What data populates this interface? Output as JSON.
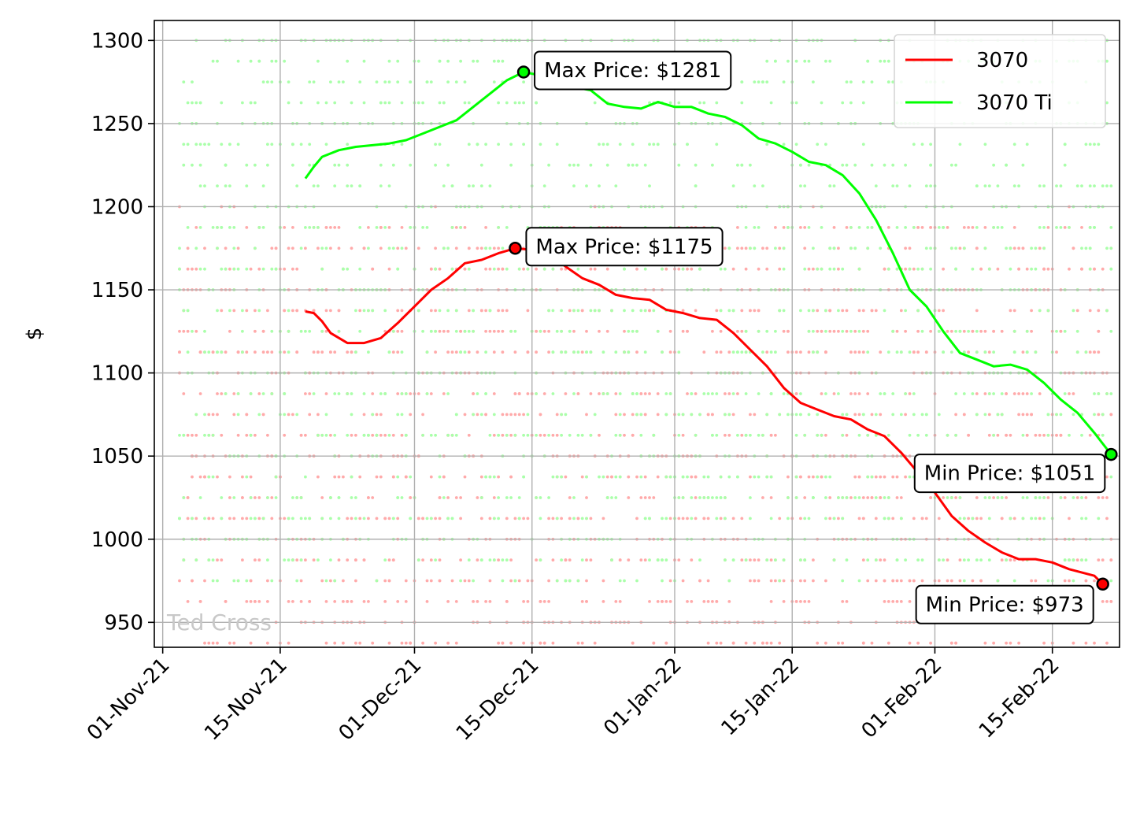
{
  "chart_data": {
    "type": "line",
    "ylabel": "$",
    "ylim": [
      935,
      1312
    ],
    "xlim": [
      "2021-10-31",
      "2022-02-23"
    ],
    "grid": true,
    "legend_position": "top-right",
    "watermark": "Ted Cross",
    "x_ticks": [
      {
        "date": "2021-11-01",
        "label": "01-Nov-21"
      },
      {
        "date": "2021-11-15",
        "label": "15-Nov-21"
      },
      {
        "date": "2021-12-01",
        "label": "01-Dec-21"
      },
      {
        "date": "2021-12-15",
        "label": "15-Dec-21"
      },
      {
        "date": "2022-01-01",
        "label": "01-Jan-22"
      },
      {
        "date": "2022-01-15",
        "label": "15-Jan-22"
      },
      {
        "date": "2022-02-01",
        "label": "01-Feb-22"
      },
      {
        "date": "2022-02-15",
        "label": "15-Feb-22"
      }
    ],
    "y_ticks": [
      950,
      1000,
      1050,
      1100,
      1150,
      1200,
      1250,
      1300
    ],
    "series": [
      {
        "name": "3070",
        "color": "#ff0000",
        "scatter_color": "#ffaaaa",
        "x": [
          "2021-11-18",
          "2021-11-19",
          "2021-11-20",
          "2021-11-21",
          "2021-11-23",
          "2021-11-25",
          "2021-11-27",
          "2021-11-29",
          "2021-12-01",
          "2021-12-03",
          "2021-12-05",
          "2021-12-07",
          "2021-12-09",
          "2021-12-11",
          "2021-12-13",
          "2021-12-15",
          "2021-12-17",
          "2021-12-19",
          "2021-12-21",
          "2021-12-23",
          "2021-12-25",
          "2021-12-27",
          "2021-12-29",
          "2021-12-31",
          "2022-01-02",
          "2022-01-04",
          "2022-01-06",
          "2022-01-08",
          "2022-01-10",
          "2022-01-12",
          "2022-01-14",
          "2022-01-16",
          "2022-01-18",
          "2022-01-20",
          "2022-01-22",
          "2022-01-24",
          "2022-01-26",
          "2022-01-28",
          "2022-01-30",
          "2022-02-01",
          "2022-02-03",
          "2022-02-05",
          "2022-02-07",
          "2022-02-09",
          "2022-02-11",
          "2022-02-13",
          "2022-02-15",
          "2022-02-17",
          "2022-02-20",
          "2022-02-21"
        ],
        "y": [
          1137,
          1136,
          1131,
          1124,
          1118,
          1118,
          1121,
          1130,
          1140,
          1150,
          1157,
          1166,
          1168,
          1172,
          1175,
          1174,
          1172,
          1164,
          1157,
          1153,
          1147,
          1145,
          1144,
          1138,
          1136,
          1133,
          1132,
          1124,
          1114,
          1104,
          1091,
          1082,
          1078,
          1074,
          1072,
          1066,
          1062,
          1052,
          1040,
          1028,
          1014,
          1005,
          998,
          992,
          988,
          988,
          986,
          982,
          978,
          973
        ],
        "max": {
          "date": "2021-12-13",
          "value": 1175,
          "label": "Max Price: $1175"
        },
        "min": {
          "date": "2022-02-21",
          "value": 973,
          "label": "Min Price: $973"
        }
      },
      {
        "name": "3070 Ti",
        "color": "#00ff00",
        "scatter_color": "#aaffaa",
        "x": [
          "2021-11-18",
          "2021-11-19",
          "2021-11-20",
          "2021-11-22",
          "2021-11-24",
          "2021-11-26",
          "2021-11-28",
          "2021-11-30",
          "2021-12-02",
          "2021-12-04",
          "2021-12-06",
          "2021-12-08",
          "2021-12-10",
          "2021-12-12",
          "2021-12-14",
          "2021-12-16",
          "2021-12-18",
          "2021-12-20",
          "2021-12-22",
          "2021-12-24",
          "2021-12-26",
          "2021-12-28",
          "2021-12-30",
          "2022-01-01",
          "2022-01-03",
          "2022-01-05",
          "2022-01-07",
          "2022-01-09",
          "2022-01-11",
          "2022-01-13",
          "2022-01-15",
          "2022-01-17",
          "2022-01-19",
          "2022-01-21",
          "2022-01-23",
          "2022-01-25",
          "2022-01-27",
          "2022-01-29",
          "2022-01-31",
          "2022-02-02",
          "2022-02-04",
          "2022-02-06",
          "2022-02-08",
          "2022-02-10",
          "2022-02-12",
          "2022-02-14",
          "2022-02-16",
          "2022-02-18",
          "2022-02-20",
          "2022-02-22"
        ],
        "y": [
          1217,
          1224,
          1230,
          1234,
          1236,
          1237,
          1238,
          1240,
          1244,
          1248,
          1252,
          1260,
          1268,
          1276,
          1281,
          1279,
          1276,
          1272,
          1270,
          1262,
          1260,
          1259,
          1263,
          1260,
          1260,
          1256,
          1254,
          1249,
          1241,
          1238,
          1233,
          1227,
          1225,
          1219,
          1208,
          1192,
          1172,
          1150,
          1140,
          1125,
          1112,
          1108,
          1104,
          1105,
          1102,
          1094,
          1084,
          1076,
          1064,
          1051
        ],
        "max": {
          "date": "2021-12-14",
          "value": 1281,
          "label": "Max Price: $1281"
        },
        "min": {
          "date": "2022-02-22",
          "value": 1051,
          "label": "Min Price: $1051"
        }
      }
    ]
  }
}
